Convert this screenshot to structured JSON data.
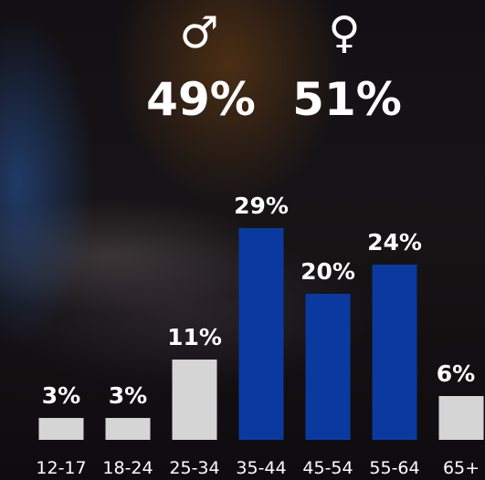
{
  "gender": {
    "male_symbol": "♂",
    "male_label": "49%",
    "female_symbol": "♀",
    "female_label": "51%"
  },
  "colors": {
    "highlight_bar": "#0a3aa0",
    "default_bar": "#d5d5d5",
    "text": "#ffffff"
  },
  "chart_data": {
    "type": "bar",
    "categories": [
      "12-17",
      "18-24",
      "25-34",
      "35-44",
      "45-54",
      "55-64",
      "65+"
    ],
    "values": [
      3,
      3,
      11,
      29,
      20,
      24,
      6
    ],
    "data_labels": [
      "3%",
      "3%",
      "11%",
      "29%",
      "20%",
      "24%",
      "6%"
    ],
    "highlighted": [
      false,
      false,
      false,
      true,
      true,
      true,
      false
    ],
    "ylim": [
      0,
      30
    ],
    "grid": false,
    "legend": "none"
  }
}
